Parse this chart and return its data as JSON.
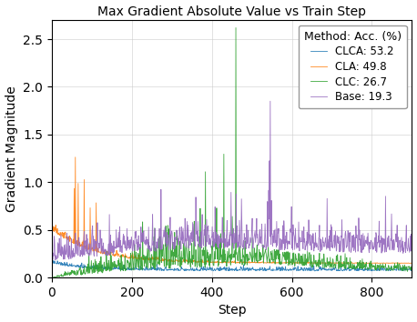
{
  "title": "Max Gradient Absolute Value vs Train Step",
  "xlabel": "Step",
  "ylabel": "Gradient Magnitude",
  "xlim": [
    0,
    900
  ],
  "ylim": [
    0,
    2.7
  ],
  "yticks": [
    0.0,
    0.5,
    1.0,
    1.5,
    2.0,
    2.5
  ],
  "xticks": [
    0,
    200,
    400,
    600,
    800
  ],
  "legend_title": "Method: Acc. (%)",
  "legend_entries": [
    {
      "label": "CLCA: 53.2",
      "color": "#1f77b4"
    },
    {
      "label": "CLA: 49.8",
      "color": "#ff7f0e"
    },
    {
      "label": "CLC: 26.7",
      "color": "#2ca02c"
    },
    {
      "label": "Base: 19.3",
      "color": "#9467bd"
    }
  ],
  "seed": 42,
  "n_steps": 900,
  "background_color": "#ffffff",
  "grid_color": "#cccccc"
}
